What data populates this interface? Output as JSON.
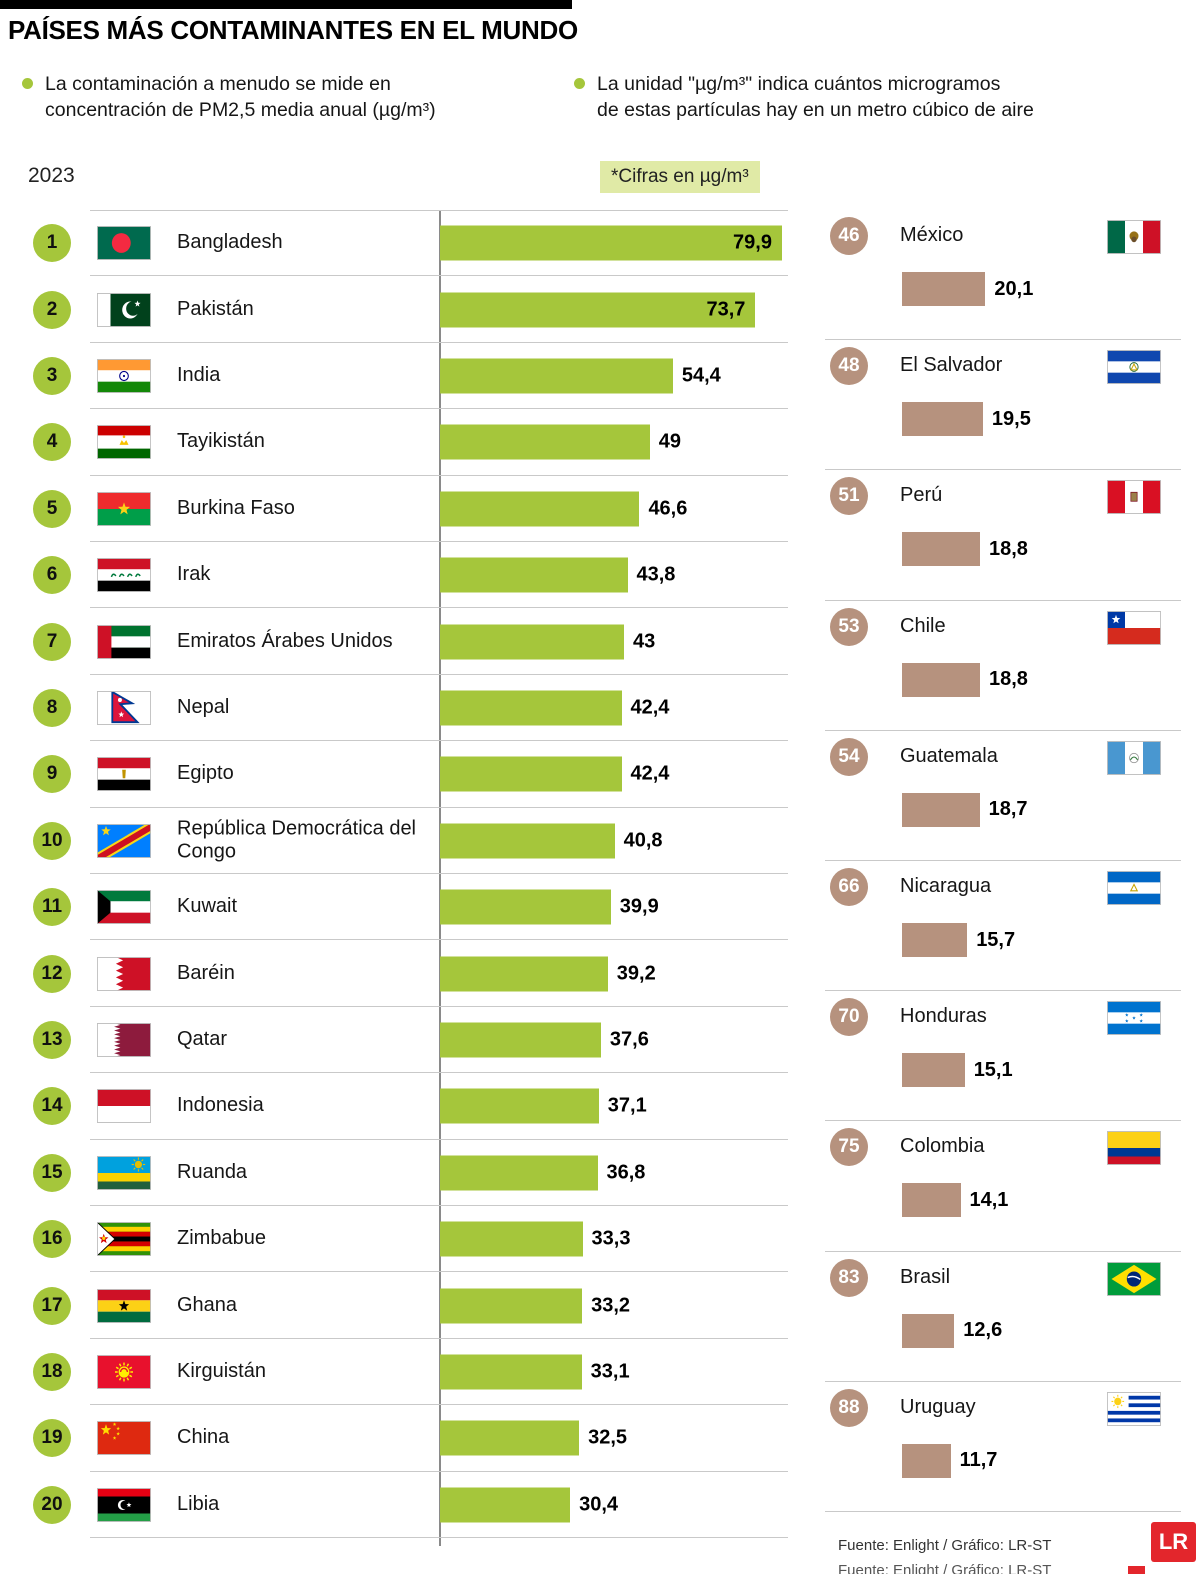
{
  "title": "PAÍSES MÁS CONTAMINANTES EN EL MUNDO",
  "year": "2023",
  "units_label": "*Cifras en µg/m³",
  "bullets": [
    {
      "line1": "La contaminación a menudo se mide en",
      "line2": "concentración de PM2,5 media anual (µg/m³)"
    },
    {
      "line1": "La unidad \"µg/m³\" indica cuántos microgramos",
      "line2": "de estas partículas hay en un metro cúbico de aire"
    }
  ],
  "footer": {
    "credit": "Fuente: Enlight / Gráfico: LR-ST",
    "logo": "LR"
  },
  "colors": {
    "green": "#a5c63b",
    "tan": "#b6927e",
    "units_bg": "#e0eaa6"
  },
  "chart_data": {
    "type": "bar",
    "orientation": "horizontal",
    "title": "Países más contaminantes en el mundo",
    "unit": "µg/m³ (concentración de PM2,5 media anual)",
    "year": 2023,
    "xlim": [
      0,
      80
    ],
    "grid": false,
    "series": [
      {
        "name": "top_20",
        "color": "#a5c63b",
        "rows": [
          {
            "rank": "1",
            "country": "Bangladesh",
            "value": 79.9,
            "label": "79,9",
            "flag": "bangladesh"
          },
          {
            "rank": "2",
            "country": "Pakistán",
            "value": 73.7,
            "label": "73,7",
            "flag": "pakistan"
          },
          {
            "rank": "3",
            "country": "India",
            "value": 54.4,
            "label": "54,4",
            "flag": "india"
          },
          {
            "rank": "4",
            "country": "Tayikistán",
            "value": 49,
            "label": "49",
            "flag": "tajikistan"
          },
          {
            "rank": "5",
            "country": "Burkina Faso",
            "value": 46.6,
            "label": "46,6",
            "flag": "burkina_faso"
          },
          {
            "rank": "6",
            "country": "Irak",
            "value": 43.8,
            "label": "43,8",
            "flag": "iraq"
          },
          {
            "rank": "7",
            "country": "Emiratos Árabes Unidos",
            "value": 43,
            "label": "43",
            "flag": "uae"
          },
          {
            "rank": "8",
            "country": "Nepal",
            "value": 42.4,
            "label": "42,4",
            "flag": "nepal"
          },
          {
            "rank": "9",
            "country": "Egipto",
            "value": 42.4,
            "label": "42,4",
            "flag": "egypt"
          },
          {
            "rank": "10",
            "country": "República Democrática del Congo",
            "value": 40.8,
            "label": "40,8",
            "flag": "dr_congo"
          },
          {
            "rank": "11",
            "country": "Kuwait",
            "value": 39.9,
            "label": "39,9",
            "flag": "kuwait"
          },
          {
            "rank": "12",
            "country": "Baréin",
            "value": 39.2,
            "label": "39,2",
            "flag": "bahrain"
          },
          {
            "rank": "13",
            "country": "Qatar",
            "value": 37.6,
            "label": "37,6",
            "flag": "qatar"
          },
          {
            "rank": "14",
            "country": "Indonesia",
            "value": 37.1,
            "label": "37,1",
            "flag": "indonesia"
          },
          {
            "rank": "15",
            "country": "Ruanda",
            "value": 36.8,
            "label": "36,8",
            "flag": "rwanda"
          },
          {
            "rank": "16",
            "country": "Zimbabue",
            "value": 33.3,
            "label": "33,3",
            "flag": "zimbabwe"
          },
          {
            "rank": "17",
            "country": "Ghana",
            "value": 33.2,
            "label": "33,2",
            "flag": "ghana"
          },
          {
            "rank": "18",
            "country": "Kirguistán",
            "value": 33.1,
            "label": "33,1",
            "flag": "kyrgyzstan"
          },
          {
            "rank": "19",
            "country": "China",
            "value": 32.5,
            "label": "32,5",
            "flag": "china"
          },
          {
            "rank": "20",
            "country": "Libia",
            "value": 30.4,
            "label": "30,4",
            "flag": "libya"
          }
        ]
      },
      {
        "name": "latam",
        "color": "#b6927e",
        "rows": [
          {
            "rank": "46",
            "country": "México",
            "value": 20.1,
            "label": "20,1",
            "flag": "mexico"
          },
          {
            "rank": "48",
            "country": "El Salvador",
            "value": 19.5,
            "label": "19,5",
            "flag": "el_salvador"
          },
          {
            "rank": "51",
            "country": "Perú",
            "value": 18.8,
            "label": "18,8",
            "flag": "peru"
          },
          {
            "rank": "53",
            "country": "Chile",
            "value": 18.8,
            "label": "18,8",
            "flag": "chile"
          },
          {
            "rank": "54",
            "country": "Guatemala",
            "value": 18.7,
            "label": "18,7",
            "flag": "guatemala"
          },
          {
            "rank": "66",
            "country": "Nicaragua",
            "value": 15.7,
            "label": "15,7",
            "flag": "nicaragua"
          },
          {
            "rank": "70",
            "country": "Honduras",
            "value": 15.1,
            "label": "15,1",
            "flag": "honduras"
          },
          {
            "rank": "75",
            "country": "Colombia",
            "value": 14.1,
            "label": "14,1",
            "flag": "colombia"
          },
          {
            "rank": "83",
            "country": "Brasil",
            "value": 12.6,
            "label": "12,6",
            "flag": "brasil"
          },
          {
            "rank": "88",
            "country": "Uruguay",
            "value": 11.7,
            "label": "11,7",
            "flag": "uruguay"
          }
        ]
      }
    ]
  }
}
